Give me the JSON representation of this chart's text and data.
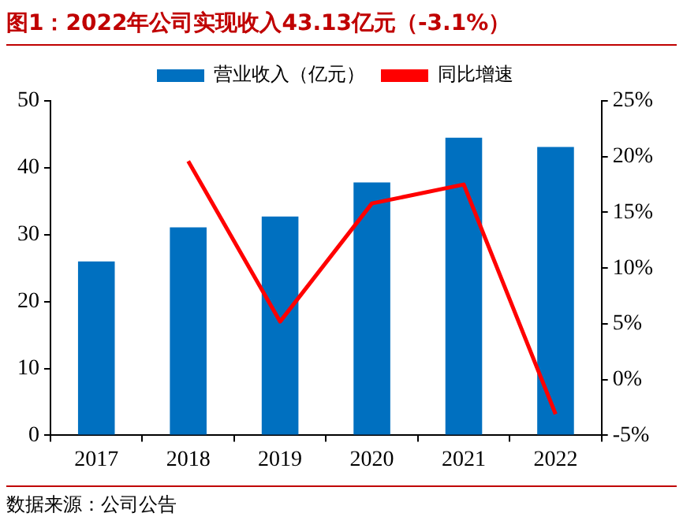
{
  "chart_data": {
    "type": "bar",
    "title": "图1：2022年公司实现收入43.13亿元（-3.1%）",
    "categories": [
      "2017",
      "2018",
      "2019",
      "2020",
      "2021",
      "2022"
    ],
    "series": [
      {
        "name": "营业收入（亿元）",
        "color": "#0070c0",
        "values": [
          26.0,
          31.1,
          32.7,
          37.8,
          44.5,
          43.1
        ]
      },
      {
        "name": "同比增速",
        "type": "line",
        "axis": "y2",
        "color": "#ff0000",
        "marker": "none",
        "values": [
          null,
          19.6,
          5.2,
          15.8,
          17.5,
          -3.1
        ]
      }
    ],
    "ylim": [
      0,
      50
    ],
    "yticks": [
      0,
      10,
      20,
      30,
      40,
      50
    ],
    "y2lim": [
      -5,
      25
    ],
    "y2ticks": [
      {
        "value": -5,
        "label": "-5%"
      },
      {
        "value": 0,
        "label": "0%"
      },
      {
        "value": 5,
        "label": "5%"
      },
      {
        "value": 10,
        "label": "10%"
      },
      {
        "value": 15,
        "label": "15%"
      },
      {
        "value": 20,
        "label": "20%"
      },
      {
        "value": 25,
        "label": "25%"
      }
    ],
    "grid": false,
    "legend": "top",
    "annotations": [
      "数据来源：公司公告"
    ]
  }
}
